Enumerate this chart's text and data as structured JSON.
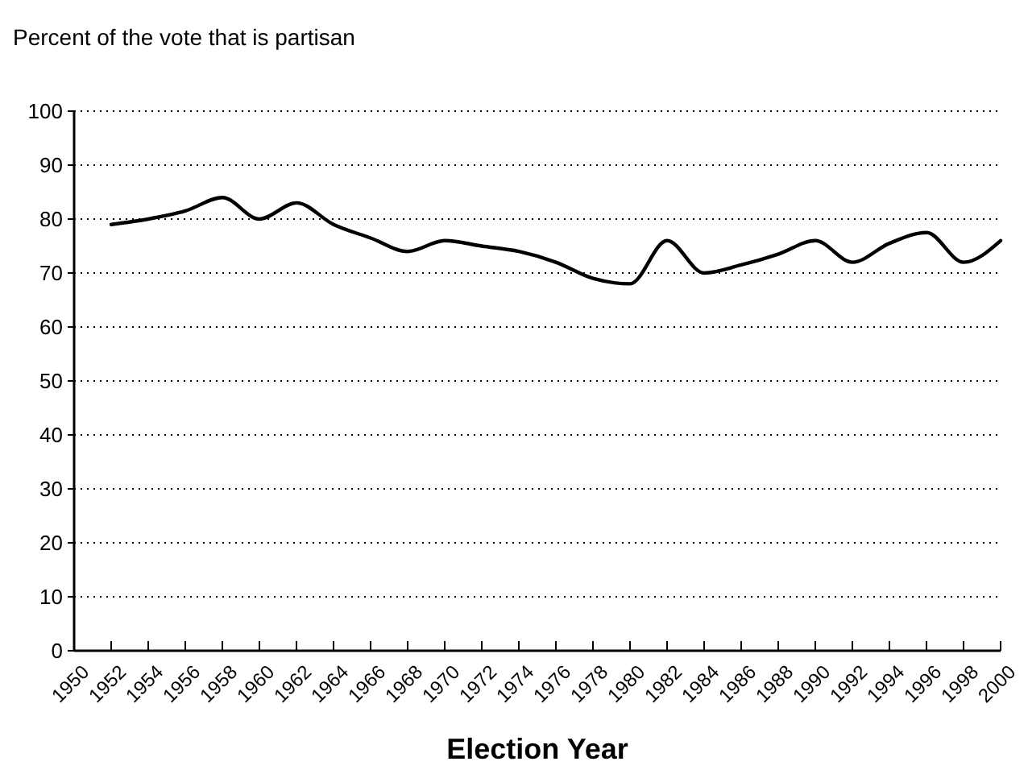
{
  "chart_data": {
    "type": "line",
    "ylabel": "Percent of the vote that is partisan",
    "xlabel": "Election Year",
    "x": [
      1952,
      1954,
      1956,
      1958,
      1960,
      1962,
      1964,
      1966,
      1968,
      1970,
      1972,
      1974,
      1976,
      1978,
      1980,
      1982,
      1984,
      1986,
      1988,
      1990,
      1992,
      1994,
      1996,
      1998,
      2000
    ],
    "series": [
      {
        "color": "#000000",
        "values": [
          79,
          80,
          81.5,
          84,
          80,
          83,
          79,
          76.5,
          74,
          76,
          75,
          74,
          72,
          69,
          68,
          76,
          70,
          71.5,
          73.5,
          76,
          72,
          75.5,
          77.5,
          72,
          76
        ]
      }
    ],
    "xlim": [
      1950,
      2000
    ],
    "xticks": [
      1950,
      1952,
      1954,
      1956,
      1958,
      1960,
      1962,
      1964,
      1966,
      1968,
      1970,
      1972,
      1974,
      1976,
      1978,
      1980,
      1982,
      1984,
      1986,
      1988,
      1990,
      1992,
      1994,
      1996,
      1998,
      2000
    ],
    "ylim": [
      0,
      100
    ],
    "yticks": [
      0,
      10,
      20,
      30,
      40,
      50,
      60,
      70,
      80,
      90,
      100
    ],
    "grid": "y",
    "marker": "none",
    "line_style": "solid"
  }
}
